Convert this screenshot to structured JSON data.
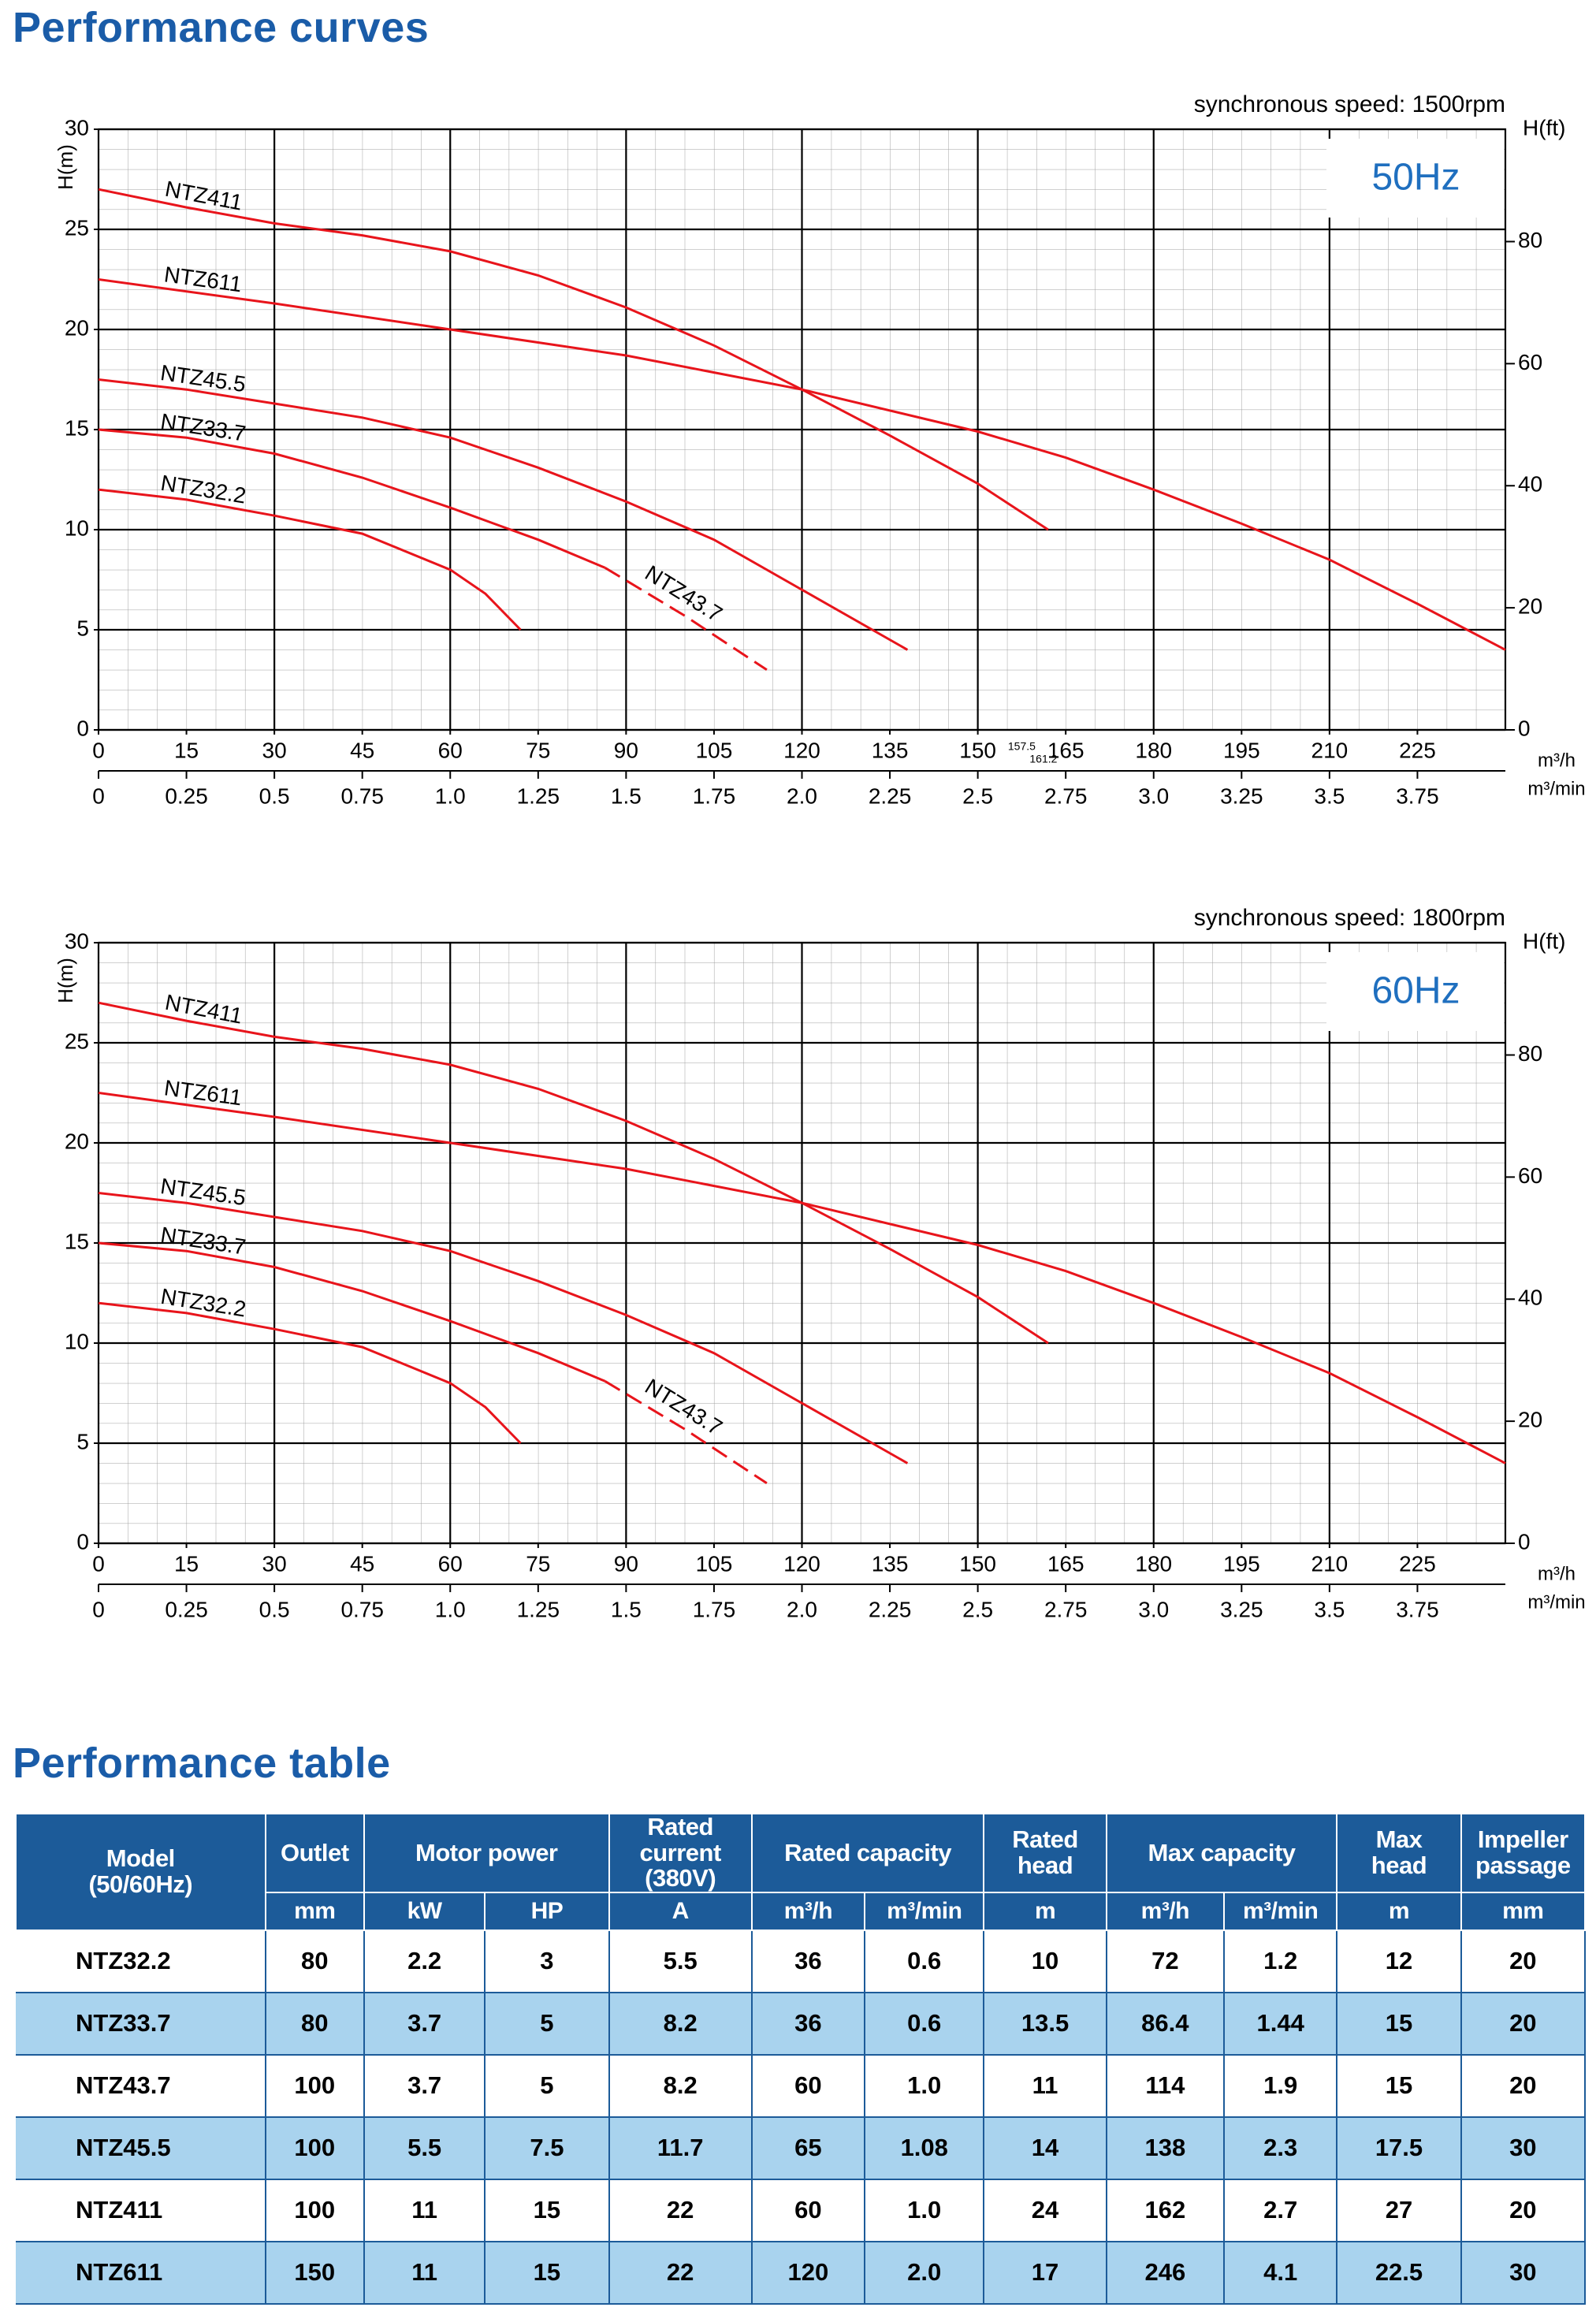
{
  "headings": {
    "curves": "Performance curves",
    "table": "Performance table"
  },
  "chart_data": [
    {
      "type": "line",
      "subtitle": "synchronous speed: 1500rpm",
      "frequency_label": "50Hz",
      "y_label": "H(m)",
      "y2_label": "H(ft)",
      "x_label": "m³/h",
      "x2_label": "m³/min",
      "xlim": [
        0,
        240
      ],
      "xticks": [
        0,
        15,
        30,
        45,
        60,
        75,
        90,
        105,
        120,
        135,
        150,
        165,
        180,
        195,
        210,
        225
      ],
      "xgrid": [
        30,
        60,
        90,
        120,
        150,
        180,
        210
      ],
      "x2lim": [
        0,
        4
      ],
      "x2ticks": [
        0,
        0.25,
        0.5,
        0.75,
        {
          "value": 1,
          "label": "1.0"
        },
        1.25,
        1.5,
        1.75,
        {
          "value": 2,
          "label": "2.0"
        },
        2.25,
        2.5,
        2.75,
        {
          "value": 3,
          "label": "3.0"
        },
        3.25,
        3.5,
        3.75
      ],
      "ylim": [
        0,
        30
      ],
      "yticks": [
        0,
        5,
        10,
        15,
        20,
        25,
        30
      ],
      "y2lim": [
        0,
        98.4
      ],
      "y2ticks": [
        0,
        20,
        40,
        60,
        80
      ],
      "grid": true,
      "minor_grid": {
        "x": 5,
        "y": 1
      },
      "x_annotations": [
        157.5,
        161.2
      ],
      "series": [
        {
          "name": "NTZ411",
          "color": "#e8141b",
          "style": "solid",
          "x": [
            0,
            15,
            30,
            45,
            60,
            75,
            90,
            105,
            120,
            135,
            150,
            162
          ],
          "values": [
            27,
            26.1,
            25.3,
            24.7,
            23.9,
            22.7,
            21.1,
            19.2,
            17,
            14.7,
            12.3,
            10
          ]
        },
        {
          "name": "NTZ611",
          "color": "#e8141b",
          "style": "solid",
          "x": [
            0,
            30,
            60,
            90,
            120,
            150,
            165,
            180,
            195,
            210,
            225,
            240
          ],
          "values": [
            22.5,
            21.3,
            20,
            18.7,
            17,
            14.9,
            13.6,
            12,
            10.3,
            8.5,
            6.3,
            4
          ]
        },
        {
          "name": "NTZ45.5",
          "color": "#e8141b",
          "style": "solid",
          "x": [
            0,
            15,
            30,
            45,
            60,
            75,
            90,
            105,
            120,
            138
          ],
          "values": [
            17.5,
            17,
            16.3,
            15.6,
            14.6,
            13.1,
            11.4,
            9.5,
            7,
            4
          ]
        },
        {
          "name": "NTZ33.7",
          "color": "#e8141b",
          "style": "solid",
          "x": [
            0,
            15,
            30,
            45,
            60,
            75,
            86.4
          ],
          "values": [
            15,
            14.6,
            13.8,
            12.6,
            11.1,
            9.5,
            8.1
          ]
        },
        {
          "name": "NTZ43.7",
          "color": "#e8141b",
          "style": "dashed",
          "x": [
            86.4,
            100,
            114
          ],
          "values": [
            8.1,
            5.7,
            3
          ]
        },
        {
          "name": "NTZ32.2",
          "color": "#e8141b",
          "style": "solid",
          "x": [
            0,
            15,
            30,
            45,
            60,
            66,
            72
          ],
          "values": [
            12,
            11.5,
            10.7,
            9.8,
            8,
            6.8,
            5
          ]
        }
      ]
    },
    {
      "type": "line",
      "subtitle": "synchronous speed: 1800rpm",
      "frequency_label": "60Hz",
      "y_label": "H(m)",
      "y2_label": "H(ft)",
      "x_label": "m³/h",
      "x2_label": "m³/min",
      "xlim": [
        0,
        240
      ],
      "xticks": [
        0,
        15,
        30,
        45,
        60,
        75,
        90,
        105,
        120,
        135,
        150,
        165,
        180,
        195,
        210,
        225
      ],
      "xgrid": [
        30,
        60,
        90,
        120,
        150,
        180,
        210
      ],
      "x2lim": [
        0,
        4
      ],
      "x2ticks": [
        0,
        0.25,
        0.5,
        0.75,
        {
          "value": 1,
          "label": "1.0"
        },
        1.25,
        1.5,
        1.75,
        {
          "value": 2,
          "label": "2.0"
        },
        2.25,
        2.5,
        2.75,
        {
          "value": 3,
          "label": "3.0"
        },
        3.25,
        3.5,
        3.75
      ],
      "ylim": [
        0,
        30
      ],
      "yticks": [
        0,
        5,
        10,
        15,
        20,
        25,
        30
      ],
      "y2lim": [
        0,
        98.4
      ],
      "y2ticks": [
        0,
        20,
        40,
        60,
        80
      ],
      "grid": true,
      "minor_grid": {
        "x": 5,
        "y": 1
      },
      "series": [
        {
          "name": "NTZ411",
          "color": "#e8141b",
          "style": "solid",
          "x": [
            0,
            15,
            30,
            45,
            60,
            75,
            90,
            105,
            120,
            135,
            150,
            162
          ],
          "values": [
            27,
            26.1,
            25.3,
            24.7,
            23.9,
            22.7,
            21.1,
            19.2,
            17,
            14.7,
            12.3,
            10
          ]
        },
        {
          "name": "NTZ611",
          "color": "#e8141b",
          "style": "solid",
          "x": [
            0,
            30,
            60,
            90,
            120,
            150,
            165,
            180,
            195,
            210,
            225,
            240
          ],
          "values": [
            22.5,
            21.3,
            20,
            18.7,
            17,
            14.9,
            13.6,
            12,
            10.3,
            8.5,
            6.3,
            4
          ]
        },
        {
          "name": "NTZ45.5",
          "color": "#e8141b",
          "style": "solid",
          "x": [
            0,
            15,
            30,
            45,
            60,
            75,
            90,
            105,
            120,
            138
          ],
          "values": [
            17.5,
            17,
            16.3,
            15.6,
            14.6,
            13.1,
            11.4,
            9.5,
            7,
            4
          ]
        },
        {
          "name": "NTZ33.7",
          "color": "#e8141b",
          "style": "solid",
          "x": [
            0,
            15,
            30,
            45,
            60,
            75,
            86.4
          ],
          "values": [
            15,
            14.6,
            13.8,
            12.6,
            11.1,
            9.5,
            8.1
          ]
        },
        {
          "name": "NTZ43.7",
          "color": "#e8141b",
          "style": "dashed",
          "x": [
            86.4,
            100,
            114
          ],
          "values": [
            8.1,
            5.7,
            3
          ]
        },
        {
          "name": "NTZ32.2",
          "color": "#e8141b",
          "style": "solid",
          "x": [
            0,
            15,
            30,
            45,
            60,
            66,
            72
          ],
          "values": [
            12,
            11.5,
            10.7,
            9.8,
            8,
            6.8,
            5
          ]
        }
      ]
    }
  ],
  "table": {
    "columns": [
      {
        "title": "Model\n(50/60Hz)",
        "units": []
      },
      {
        "title": "Outlet",
        "units": [
          "mm"
        ]
      },
      {
        "title": "Motor power",
        "units": [
          "kW",
          "HP"
        ]
      },
      {
        "title": "Rated current\n(380V)",
        "units": [
          "A"
        ]
      },
      {
        "title": "Rated capacity",
        "units": [
          "m³/h",
          "m³/min"
        ]
      },
      {
        "title": "Rated\nhead",
        "units": [
          "m"
        ]
      },
      {
        "title": "Max capacity",
        "units": [
          "m³/h",
          "m³/min"
        ]
      },
      {
        "title": "Max\nhead",
        "units": [
          "m"
        ]
      },
      {
        "title": "Impeller\npassage",
        "units": [
          "mm"
        ]
      }
    ],
    "rows": [
      [
        "NTZ32.2",
        "80",
        "2.2",
        "3",
        "5.5",
        "36",
        "0.6",
        "10",
        "72",
        "1.2",
        "12",
        "20"
      ],
      [
        "NTZ33.7",
        "80",
        "3.7",
        "5",
        "8.2",
        "36",
        "0.6",
        "13.5",
        "86.4",
        "1.44",
        "15",
        "20"
      ],
      [
        "NTZ43.7",
        "100",
        "3.7",
        "5",
        "8.2",
        "60",
        "1.0",
        "11",
        "114",
        "1.9",
        "15",
        "20"
      ],
      [
        "NTZ45.5",
        "100",
        "5.5",
        "7.5",
        "11.7",
        "65",
        "1.08",
        "14",
        "138",
        "2.3",
        "17.5",
        "30"
      ],
      [
        "NTZ411",
        "100",
        "11",
        "15",
        "22",
        "60",
        "1.0",
        "24",
        "162",
        "2.7",
        "27",
        "20"
      ],
      [
        "NTZ611",
        "150",
        "11",
        "15",
        "22",
        "120",
        "2.0",
        "17",
        "246",
        "4.1",
        "22.5",
        "30"
      ]
    ]
  }
}
